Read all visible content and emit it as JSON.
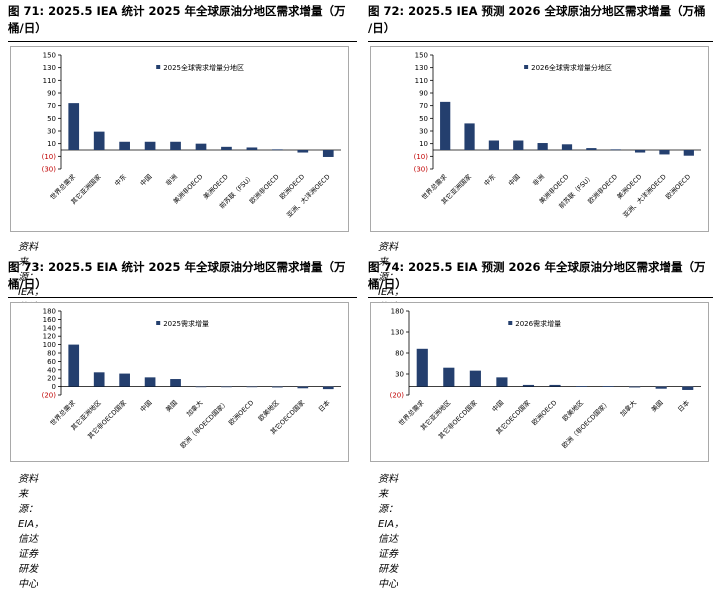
{
  "colors": {
    "bar": "#243f6e",
    "negative_tick": "#c00000",
    "frame": "#a9a9a9"
  },
  "panels": [
    {
      "title_line1": "图 71:  2025.5 IEA 统计 2025 年全球原油分地区需求增量（万",
      "title_line2": "桶/日）",
      "source": "资料来源：IEA，信达证券研发中心"
    },
    {
      "title_line1": "图 72:  2025.5 IEA 预测 2026 全球原油分地区需求增量（万桶",
      "title_line2": "/日）",
      "source": "资料来源：IEA，信达证券研发中心"
    },
    {
      "title_line1": "图 73:  2025.5 EIA 统计 2025 年全球原油分地区需求增量（万",
      "title_line2": "桶/日）",
      "source": "资料来源：EIA，信达证券研发中心"
    },
    {
      "title_line1": "图 74:  2025.5 EIA 预测 2026 年全球原油分地区需求增量（万",
      "title_line2": "桶/日）",
      "source": "资料来源：EIA，信达证券研发中心"
    }
  ],
  "chart_data": [
    {
      "type": "bar",
      "legend": "2025全球需求增量分地区",
      "legend_position": "top",
      "categories": [
        "世界总需求",
        "其它亚洲国家",
        "中东",
        "中国",
        "非洲",
        "美洲非OECD",
        "美洲OECD",
        "前苏联（FSU）",
        "欧洲非OECD",
        "欧洲OECD",
        "亚洲、大洋洲OECD"
      ],
      "values": [
        74,
        29,
        13,
        13,
        13,
        10,
        5,
        4,
        1,
        -4,
        -11
      ],
      "ylim": [
        -30,
        150
      ],
      "yticks": [
        -30,
        -10,
        10,
        30,
        50,
        70,
        90,
        110,
        130,
        150
      ],
      "ytick_labels": [
        "(30)",
        "(10)",
        "10",
        "30",
        "50",
        "70",
        "90",
        "110",
        "130",
        "150"
      ],
      "grid": false
    },
    {
      "type": "bar",
      "legend": "2026全球需求增量分地区",
      "legend_position": "top",
      "categories": [
        "世界总需求",
        "其它亚洲国家",
        "中东",
        "中国",
        "非洲",
        "美洲非OECD",
        "前苏联（FSU）",
        "欧洲非OECD",
        "美洲OECD",
        "亚洲、大洋洲OECD",
        "欧洲OECD"
      ],
      "values": [
        76,
        42,
        15,
        15,
        11,
        9,
        3,
        1,
        -4,
        -7,
        -9
      ],
      "ylim": [
        -30,
        150
      ],
      "yticks": [
        -30,
        -10,
        10,
        30,
        50,
        70,
        90,
        110,
        130,
        150
      ],
      "ytick_labels": [
        "(30)",
        "(10)",
        "10",
        "30",
        "50",
        "70",
        "90",
        "110",
        "130",
        "150"
      ],
      "grid": false
    },
    {
      "type": "bar",
      "legend": "2025需求增量",
      "legend_position": "top",
      "categories": [
        "世界总需求",
        "其它亚洲地区",
        "其它非OECD国家",
        "中国",
        "美国",
        "加拿大",
        "欧洲（非OECD国家）",
        "欧洲OECD",
        "欧美地区",
        "其它OECD国家",
        "日本"
      ],
      "values": [
        100,
        34,
        31,
        22,
        18,
        0,
        0,
        0,
        -2,
        -4,
        -6
      ],
      "ylim": [
        -20,
        180
      ],
      "yticks": [
        -20,
        0,
        20,
        40,
        60,
        80,
        100,
        120,
        140,
        160,
        180
      ],
      "ytick_labels": [
        "(20)",
        "0",
        "20",
        "40",
        "60",
        "80",
        "100",
        "120",
        "140",
        "160",
        "180"
      ],
      "grid": false
    },
    {
      "type": "bar",
      "legend": "2026需求增量",
      "legend_position": "top",
      "categories": [
        "世界总需求",
        "其它亚洲地区",
        "其它非OECD国家",
        "中国",
        "其它OECD国家",
        "欧洲OECD",
        "欧美地区",
        "欧洲（非OECD国家）",
        "加拿大",
        "美国",
        "日本"
      ],
      "values": [
        90,
        45,
        38,
        22,
        4,
        4,
        1,
        1,
        -2,
        -5,
        -8
      ],
      "ylim": [
        -20,
        180
      ],
      "yticks": [
        -20,
        30,
        80,
        130,
        180
      ],
      "ytick_labels": [
        "(20)",
        "30",
        "80",
        "130",
        "180"
      ],
      "grid": false
    }
  ]
}
